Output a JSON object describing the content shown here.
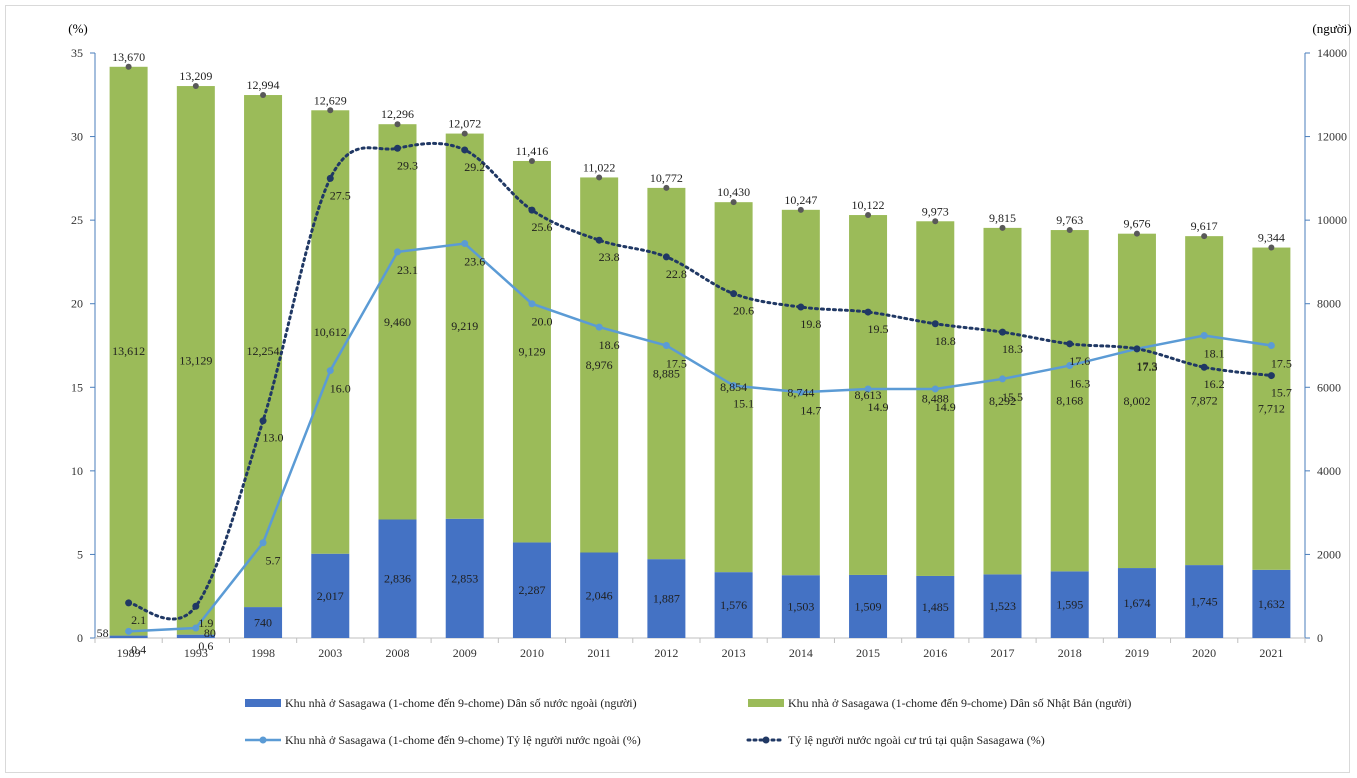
{
  "chart_data": {
    "type": "bar",
    "title": "",
    "ylabel_left": "(%)",
    "ylabel_right": "(người)",
    "ylim_left": [
      0,
      35
    ],
    "ylim_right": [
      0,
      14000
    ],
    "yticks_left": [
      0,
      5,
      10,
      15,
      20,
      25,
      30,
      35
    ],
    "yticks_right": [
      0,
      2000,
      4000,
      6000,
      8000,
      10000,
      12000,
      14000
    ],
    "categories": [
      "1989",
      "1993",
      "1998",
      "2003",
      "2008",
      "2009",
      "2010",
      "2011",
      "2012",
      "2013",
      "2014",
      "2015",
      "2016",
      "2017",
      "2018",
      "2019",
      "2020",
      "2021"
    ],
    "stacked": true,
    "totals": [
      13670,
      13209,
      12994,
      12629,
      12296,
      12072,
      11416,
      11022,
      10772,
      10430,
      10247,
      10122,
      9973,
      9815,
      9763,
      9676,
      9617,
      9344
    ],
    "total_labels": [
      "13,670",
      "13,209",
      "12,994",
      "12,629",
      "12,296",
      "12,072",
      "11,416",
      "11,022",
      "10,772",
      "10,430",
      "10,247",
      "10,122",
      "9,973",
      "9,815",
      "9,763",
      "9,676",
      "9,617",
      "9,344"
    ],
    "series": [
      {
        "name": "Khu nhà ở Sasagawa (1-chome đến 9-chome) Dân số nước ngoài (người)",
        "kind": "bar",
        "axis": "right",
        "color": "#4472c4",
        "values": [
          58,
          80,
          740,
          2017,
          2836,
          2853,
          2287,
          2046,
          1887,
          1576,
          1503,
          1509,
          1485,
          1523,
          1595,
          1674,
          1745,
          1632
        ],
        "labels": [
          "58",
          "80",
          "740",
          "2,017",
          "2,836",
          "2,853",
          "2,287",
          "2,046",
          "1,887",
          "1,576",
          "1,503",
          "1,509",
          "1,485",
          "1,523",
          "1,595",
          "1,674",
          "1,745",
          "1,632"
        ]
      },
      {
        "name": "Khu nhà ở Sasagawa (1-chome đến 9-chome) Dân số Nhật Bản (người)",
        "kind": "bar",
        "axis": "right",
        "color": "#9bbb59",
        "values": [
          13612,
          13129,
          12254,
          10612,
          9460,
          9219,
          9129,
          8976,
          8885,
          8854,
          8744,
          8613,
          8488,
          8292,
          8168,
          8002,
          7872,
          7712
        ],
        "labels": [
          "13,612",
          "13,129",
          "12,254",
          "10,612",
          "9,460",
          "9,219",
          "9,129",
          "8,976",
          "8,885",
          "8,854",
          "8,744",
          "8,613",
          "8,488",
          "8,292",
          "8,168",
          "8,002",
          "7,872",
          "7,712"
        ]
      },
      {
        "name": "Khu nhà ở Sasagawa (1-chome đến 9-chome) Tỷ lệ người nước ngoài (%)",
        "kind": "line",
        "axis": "left",
        "color": "#5b9bd5",
        "values": [
          0.4,
          0.6,
          5.7,
          16.0,
          23.1,
          23.6,
          20.0,
          18.6,
          17.5,
          15.1,
          14.7,
          14.9,
          14.9,
          15.5,
          16.3,
          17.3,
          18.1,
          17.5
        ],
        "labels": [
          "0.4",
          "0.6",
          "5.7",
          "16.0",
          "23.1",
          "23.6",
          "20.0",
          "18.6",
          "17.5",
          "15.1",
          "14.7",
          "14.9",
          "14.9",
          "15.5",
          "16.3",
          "17.3",
          "18.1",
          "17.5"
        ]
      },
      {
        "name": "Tỷ lệ người nước ngoài cư trú tại quận Sasagawa (%)",
        "kind": "dotted-line",
        "axis": "left",
        "color": "#203864",
        "values": [
          2.1,
          1.9,
          13.0,
          27.5,
          29.3,
          29.2,
          25.6,
          23.8,
          22.8,
          20.6,
          19.8,
          19.5,
          18.8,
          18.3,
          17.6,
          17.3,
          16.2,
          15.7
        ],
        "labels": [
          "2.1",
          "1.9",
          "13.0",
          "27.5",
          "29.3",
          "29.2",
          "25.6",
          "23.8",
          "22.8",
          "20.6",
          "19.8",
          "19.5",
          "18.8",
          "18.3",
          "17.6",
          "17.3",
          "16.2",
          "15.7"
        ]
      }
    ],
    "grid": false,
    "legend_position": "bottom"
  }
}
